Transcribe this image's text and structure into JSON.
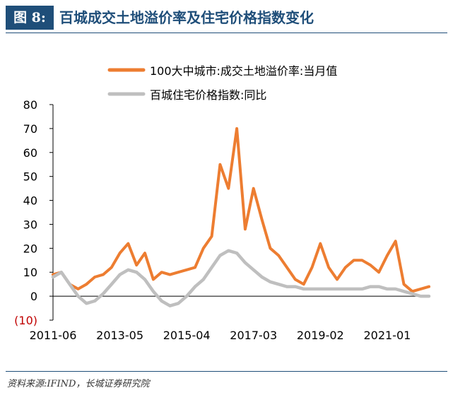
{
  "header": {
    "fig_label": "图 8:",
    "title": "百城成交土地溢价率及住宅价格指数变化"
  },
  "source": "资料来源:IFIND，长城证券研究院",
  "colors": {
    "navy": "#1f4e79",
    "orange": "#ed7d31",
    "gray": "#bfbfbf",
    "negative_label": "#c00000"
  },
  "chart_data": {
    "type": "line",
    "x": [
      "2011-06",
      "2011-09",
      "2011-12",
      "2012-03",
      "2012-06",
      "2012-09",
      "2012-12",
      "2013-03",
      "2013-05",
      "2013-08",
      "2013-11",
      "2014-02",
      "2014-05",
      "2014-08",
      "2014-11",
      "2015-02",
      "2015-04",
      "2015-07",
      "2015-10",
      "2016-01",
      "2016-04",
      "2016-07",
      "2016-10",
      "2017-01",
      "2017-03",
      "2017-06",
      "2017-09",
      "2017-12",
      "2018-03",
      "2018-06",
      "2018-09",
      "2018-12",
      "2019-02",
      "2019-05",
      "2019-08",
      "2019-11",
      "2020-02",
      "2020-05",
      "2020-08",
      "2020-11",
      "2021-01",
      "2021-04",
      "2021-07",
      "2021-10",
      "2022-01",
      "2022-04"
    ],
    "series": [
      {
        "name": "100大中城市:成交土地溢价率:当月值",
        "values": [
          9,
          10,
          5,
          3,
          5,
          8,
          9,
          12,
          18,
          22,
          13,
          18,
          7,
          10,
          9,
          10,
          11,
          12,
          20,
          25,
          55,
          45,
          70,
          28,
          45,
          32,
          20,
          17,
          12,
          7,
          5,
          12,
          22,
          12,
          7,
          12,
          15,
          15,
          13,
          10,
          17,
          23,
          5,
          2,
          3,
          4
        ]
      },
      {
        "name": "百城住宅价格指数:同比",
        "values": [
          8,
          10,
          5,
          0,
          -3,
          -2,
          1,
          5,
          9,
          11,
          10,
          7,
          2,
          -2,
          -4,
          -3,
          0,
          4,
          7,
          12,
          17,
          19,
          18,
          14,
          11,
          8,
          6,
          5,
          4,
          4,
          3,
          3,
          3,
          3,
          3,
          3,
          3,
          3,
          4,
          4,
          3,
          3,
          2,
          1,
          0,
          0
        ]
      }
    ],
    "ylim": [
      -10,
      80
    ],
    "yticks": [
      "80",
      "70",
      "60",
      "50",
      "40",
      "30",
      "20",
      "10",
      "0",
      "(10)"
    ],
    "xtick_labels": [
      "2011-06",
      "2013-05",
      "2015-04",
      "2017-03",
      "2019-02",
      "2021-01"
    ],
    "legend_position": "top"
  }
}
